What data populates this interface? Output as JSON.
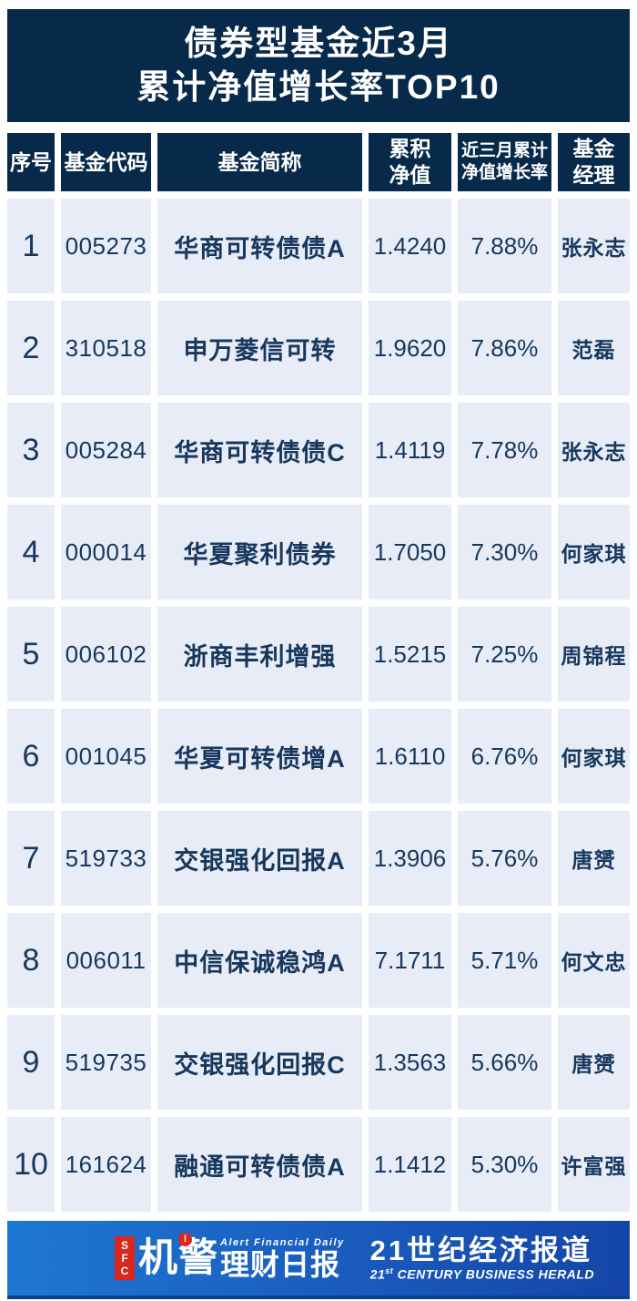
{
  "header": {
    "title_line1": "债券型基金近3月",
    "title_line2": "累计净值增长率TOP10"
  },
  "chart_data": {
    "type": "table",
    "title": "债券型基金近3月累计净值增长率TOP10",
    "columns": [
      "序号",
      "基金代码",
      "基金简称",
      "累积净值",
      "近三月累计净值增长率",
      "基金经理"
    ],
    "column_headers": {
      "rank": "序号",
      "code": "基金代码",
      "name": "基金简称",
      "nav_line1": "累积",
      "nav_line2": "净值",
      "growth_line1": "近三月累计",
      "growth_line2": "净值增长率",
      "manager_line1": "基金",
      "manager_line2": "经理"
    },
    "rows": [
      {
        "rank": "1",
        "code": "005273",
        "name": "华商可转债债A",
        "nav": "1.4240",
        "growth": "7.88%",
        "manager": "张永志"
      },
      {
        "rank": "2",
        "code": "310518",
        "name": "申万菱信可转",
        "nav": "1.9620",
        "growth": "7.86%",
        "manager": "范磊"
      },
      {
        "rank": "3",
        "code": "005284",
        "name": "华商可转债债C",
        "nav": "1.4119",
        "growth": "7.78%",
        "manager": "张永志"
      },
      {
        "rank": "4",
        "code": "000014",
        "name": "华夏聚利债券",
        "nav": "1.7050",
        "growth": "7.30%",
        "manager": "何家琪"
      },
      {
        "rank": "5",
        "code": "006102",
        "name": "浙商丰利增强",
        "nav": "1.5215",
        "growth": "7.25%",
        "manager": "周锦程"
      },
      {
        "rank": "6",
        "code": "001045",
        "name": "华夏可转债增A",
        "nav": "1.6110",
        "growth": "6.76%",
        "manager": "何家琪"
      },
      {
        "rank": "7",
        "code": "519733",
        "name": "交银强化回报A",
        "nav": "1.3906",
        "growth": "5.76%",
        "manager": "唐赟"
      },
      {
        "rank": "8",
        "code": "006011",
        "name": "中信保诚稳鸿A",
        "nav": "7.1711",
        "growth": "5.71%",
        "manager": "何文忠"
      },
      {
        "rank": "9",
        "code": "519735",
        "name": "交银强化回报C",
        "nav": "1.3563",
        "growth": "5.66%",
        "manager": "唐赟"
      },
      {
        "rank": "10",
        "code": "161624",
        "name": "融通可转债债A",
        "nav": "1.1412",
        "growth": "5.30%",
        "manager": "许富强"
      }
    ]
  },
  "footer": {
    "sfc_badge": "SFC",
    "exclamation_icon": "!",
    "logo_cn_main": "机警",
    "logo_cn_rest": "理财日报",
    "logo_en": "Alert Financial Daily",
    "brand_cn": "21世纪经济报道",
    "brand_en_num": "21",
    "brand_en_sup": "st",
    "brand_en_rest": " CENTURY BUSINESS HERALD"
  },
  "colors": {
    "header_navy": "#07294a",
    "cell_bg": "#e7ecf6",
    "text_navy": "#17375d",
    "footer_blue_left": "#1e78d2",
    "footer_blue_right": "#1545a8",
    "badge_red": "#d8281e"
  }
}
